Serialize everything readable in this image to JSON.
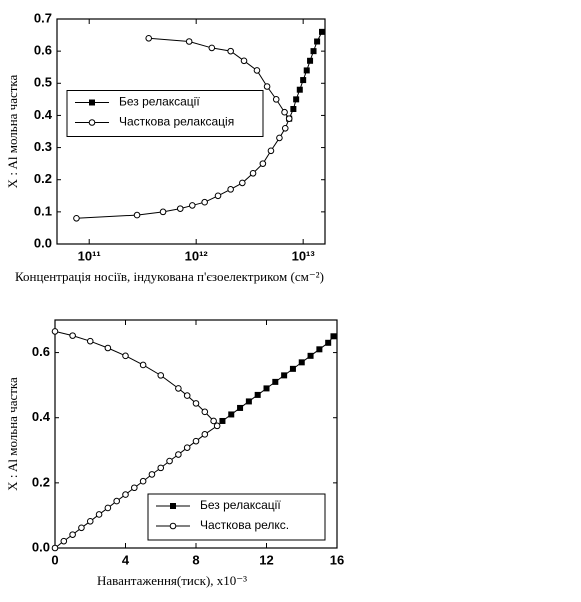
{
  "chart_data": [
    {
      "type": "line",
      "xlabel": "Концентрація носіїв, індукована п'єзоелектриком (см⁻²)",
      "ylabel": "X : Al  мольна частка",
      "xscale": "log",
      "xlim": [
        50000000000,
        16000000000000
      ],
      "ylim": [
        0,
        0.7
      ],
      "xticks": [
        {
          "value": 100000000000,
          "label": "10¹¹"
        },
        {
          "value": 1000000000000,
          "label": "10¹²"
        },
        {
          "value": 10000000000000,
          "label": "10¹³"
        }
      ],
      "yticks": [
        {
          "value": 0,
          "label": "0.0"
        },
        0.1,
        0.2,
        0.3,
        0.4,
        0.5,
        0.6,
        0.7
      ],
      "legend": "center left",
      "series": [
        {
          "name": "Без релаксації",
          "color": "#000000",
          "marker": "square",
          "x": [
            7400000000000,
            8100000000000,
            8600000000000,
            9300000000000,
            10000000000000,
            10800000000000,
            11600000000000,
            12500000000000,
            13500000000000,
            15000000000000
          ],
          "values": [
            0.39,
            0.42,
            0.45,
            0.48,
            0.51,
            0.54,
            0.57,
            0.6,
            0.63,
            0.66
          ]
        },
        {
          "name": "Часткова релаксація",
          "color": "#000000",
          "marker": "circle",
          "x": [
            360000000000,
            860000000000,
            1400000000000,
            2100000000000,
            2800000000000,
            3700000000000,
            4600000000000,
            5600000000000,
            6700000000000,
            7400000000000,
            6800000000000,
            6000000000000,
            5000000000000,
            4200000000000,
            3400000000000,
            2700000000000,
            2100000000000,
            1600000000000,
            1200000000000,
            920000000000,
            710000000000,
            490000000000,
            280000000000,
            76000000000
          ],
          "values": [
            0.64,
            0.63,
            0.61,
            0.6,
            0.57,
            0.54,
            0.49,
            0.45,
            0.41,
            0.39,
            0.36,
            0.33,
            0.29,
            0.25,
            0.22,
            0.19,
            0.17,
            0.15,
            0.13,
            0.12,
            0.11,
            0.1,
            0.09,
            0.08
          ]
        }
      ]
    },
    {
      "type": "line",
      "xlabel": "Навантаження(тиск), x10⁻³",
      "ylabel": "X : Al  мольна частка",
      "xlim": [
        0,
        16
      ],
      "ylim": [
        0,
        0.7
      ],
      "xticks": [
        0,
        4,
        8,
        12,
        16
      ],
      "yticks": [
        {
          "value": 0,
          "label": "0.0"
        },
        0.2,
        0.4,
        0.6
      ],
      "legend": "lower right",
      "series": [
        {
          "name": "Без релаксації",
          "color": "#000000",
          "marker": "square",
          "x": [
            9.5,
            10,
            10.5,
            11,
            11.5,
            12,
            12.5,
            13,
            13.5,
            14,
            14.5,
            15,
            15.5,
            15.8
          ],
          "values": [
            0.39,
            0.41,
            0.43,
            0.45,
            0.47,
            0.49,
            0.51,
            0.53,
            0.55,
            0.57,
            0.59,
            0.61,
            0.63,
            0.65
          ]
        },
        {
          "name": "Часткова релкс.",
          "color": "#000000",
          "marker": "circle",
          "x": [
            0,
            1,
            2,
            3,
            4,
            5,
            6,
            7,
            7.5,
            8,
            8.5,
            9,
            9.2,
            8.5,
            8,
            7.5,
            7,
            6.5,
            6,
            5.5,
            5,
            4.5,
            4,
            3.5,
            3,
            2.5,
            2,
            1.5,
            1,
            0.5,
            0
          ],
          "values": [
            0.665,
            0.652,
            0.635,
            0.614,
            0.59,
            0.562,
            0.53,
            0.49,
            0.468,
            0.444,
            0.418,
            0.39,
            0.375,
            0.349,
            0.328,
            0.308,
            0.287,
            0.267,
            0.246,
            0.226,
            0.205,
            0.185,
            0.164,
            0.144,
            0.123,
            0.103,
            0.082,
            0.062,
            0.041,
            0.021,
            0
          ]
        }
      ]
    }
  ]
}
